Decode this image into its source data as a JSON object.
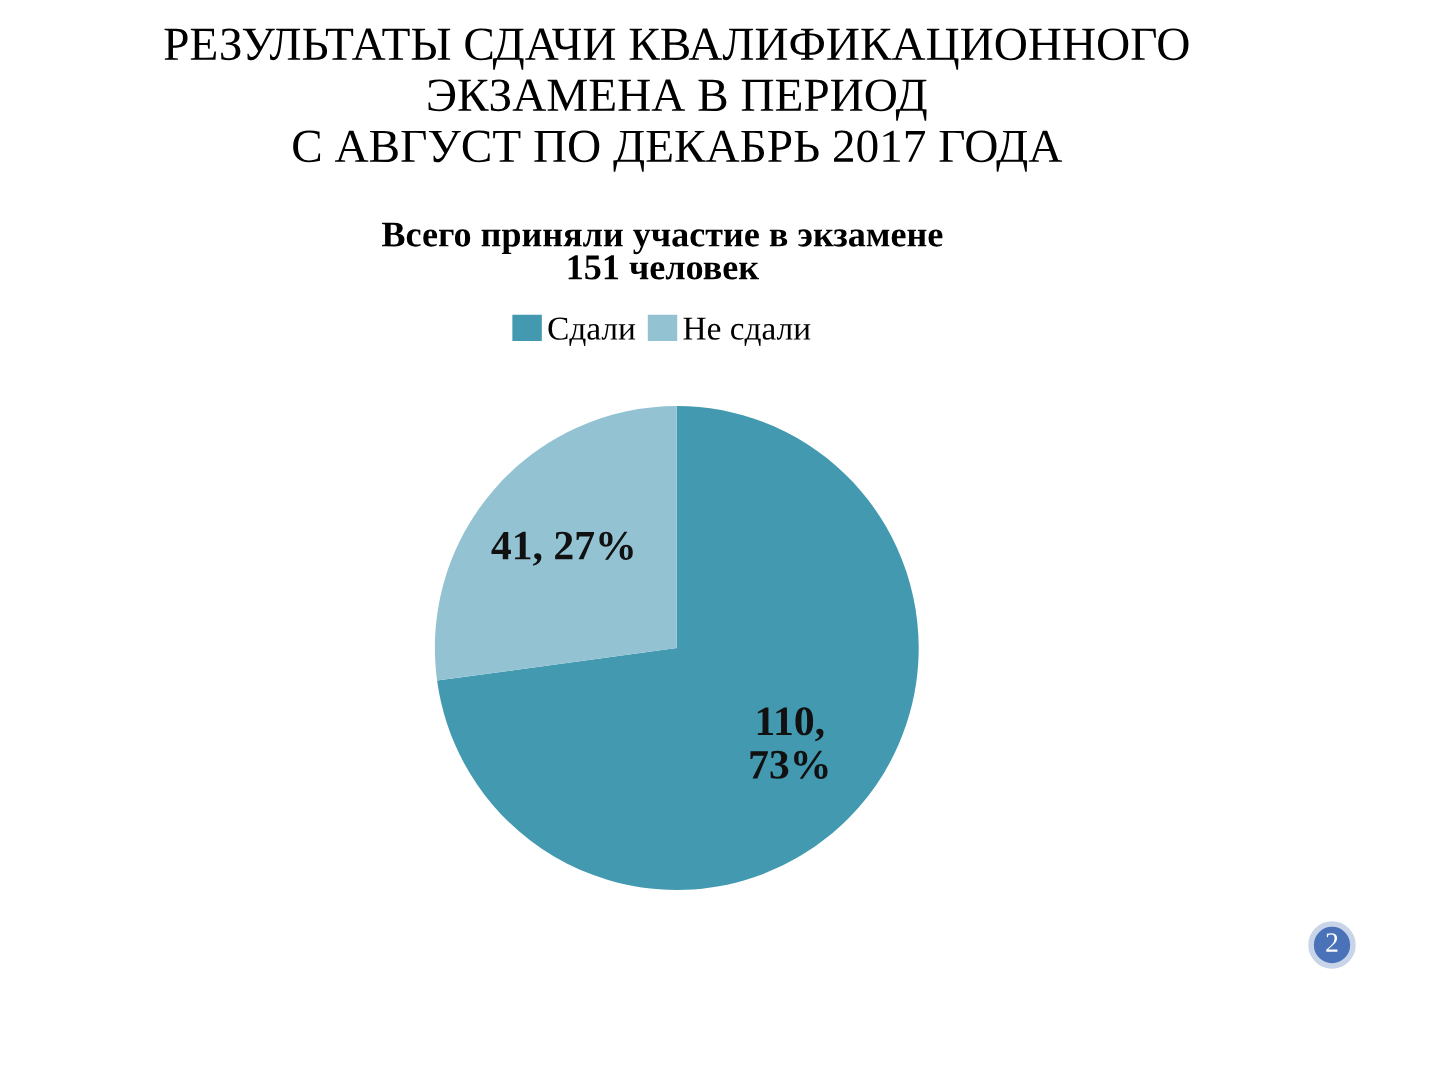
{
  "chart_data": {
    "type": "pie",
    "title": "РЕЗУЛЬТАТЫ СДАЧИ КВАЛИФИКАЦИОННОГО\nЭКЗАМЕНА В ПЕРИОД\nС АВГУСТ ПО ДЕКАБРЬ 2017 ГОДА",
    "subtitle": "Всего приняли участие в экзамене\n151 человек",
    "categories": [
      "Сдали",
      "Не сдали"
    ],
    "values": [
      110,
      41
    ],
    "colors": [
      "#4299b0",
      "#93c3d3"
    ],
    "value_labels": [
      "110,\n73%",
      "41, 27%"
    ],
    "legend": "top",
    "annotations": [
      "2"
    ]
  }
}
